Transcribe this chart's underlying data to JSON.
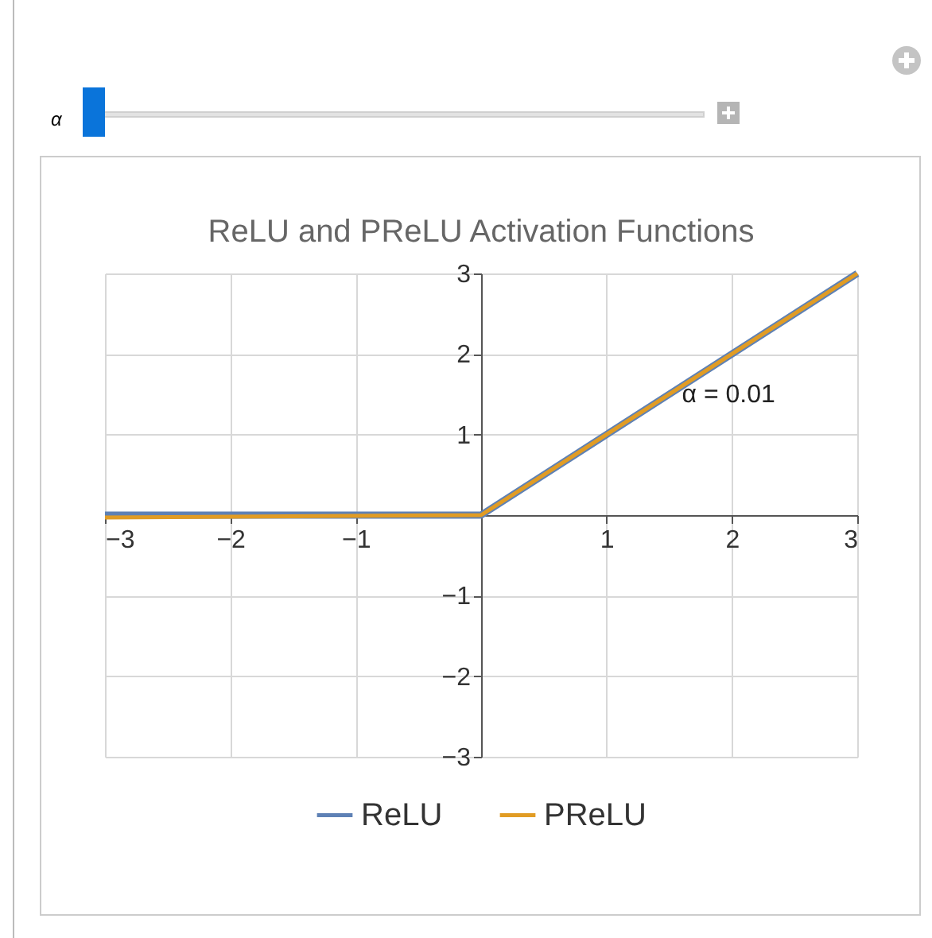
{
  "chart_data": {
    "type": "line",
    "title": "ReLU and PReLU Activation Functions",
    "x": [
      -3,
      0,
      3
    ],
    "series": [
      {
        "name": "ReLU",
        "color": "#5e81b5",
        "values": [
          0,
          0,
          3
        ]
      },
      {
        "name": "PReLU",
        "color": "#e19c24",
        "values": [
          -0.03,
          0,
          3
        ]
      }
    ],
    "annotations": [
      "α",
      {
        "text": "α = 0.01",
        "x": 1.5,
        "y": 1.5
      }
    ],
    "xlim": [
      -3,
      3
    ],
    "xticks": [
      -3,
      -2,
      -1,
      1,
      2,
      3
    ],
    "ylim": [
      -3,
      3
    ],
    "yticks": [
      -3,
      -2,
      -1,
      1,
      2,
      3
    ],
    "grid": true,
    "legend": "bottom",
    "marker": "none",
    "line_style": "solid"
  }
}
